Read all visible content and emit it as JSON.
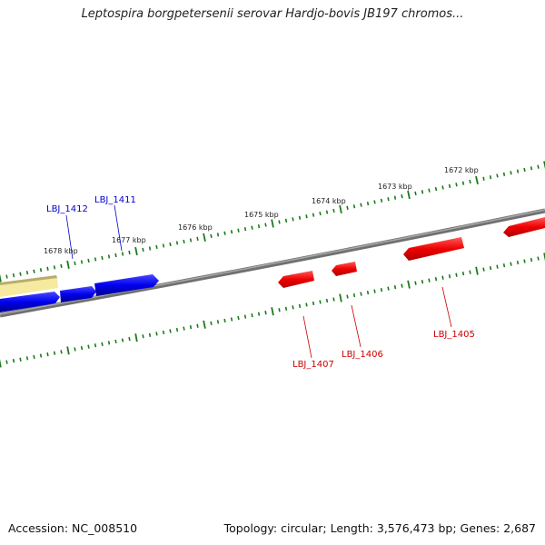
{
  "title": "Leptospira borgpetersenii serovar Hardjo-bovis JB197 chromos...",
  "footer": {
    "accession": "Accession: NC_008510",
    "summary": "Topology: circular; Length: 3,576,473 bp; Genes: 2,687"
  },
  "scale_labels": [
    "1678 kbp",
    "1677 kbp",
    "1676 kbp",
    "1675 kbp",
    "1674 kbp",
    "1673 kbp",
    "1672 kbp"
  ],
  "gene_labels": {
    "forward": [
      "LBJ_1412",
      "LBJ_1411"
    ],
    "reverse": [
      "LBJ_1407",
      "LBJ_1406",
      "LBJ_1405"
    ]
  },
  "colors": {
    "forward_gene": "#0000ee",
    "reverse_gene": "#ee0000",
    "other_feature": "#f5eaa0",
    "backbone": "#808080",
    "ticks": "#1a7a1a"
  }
}
